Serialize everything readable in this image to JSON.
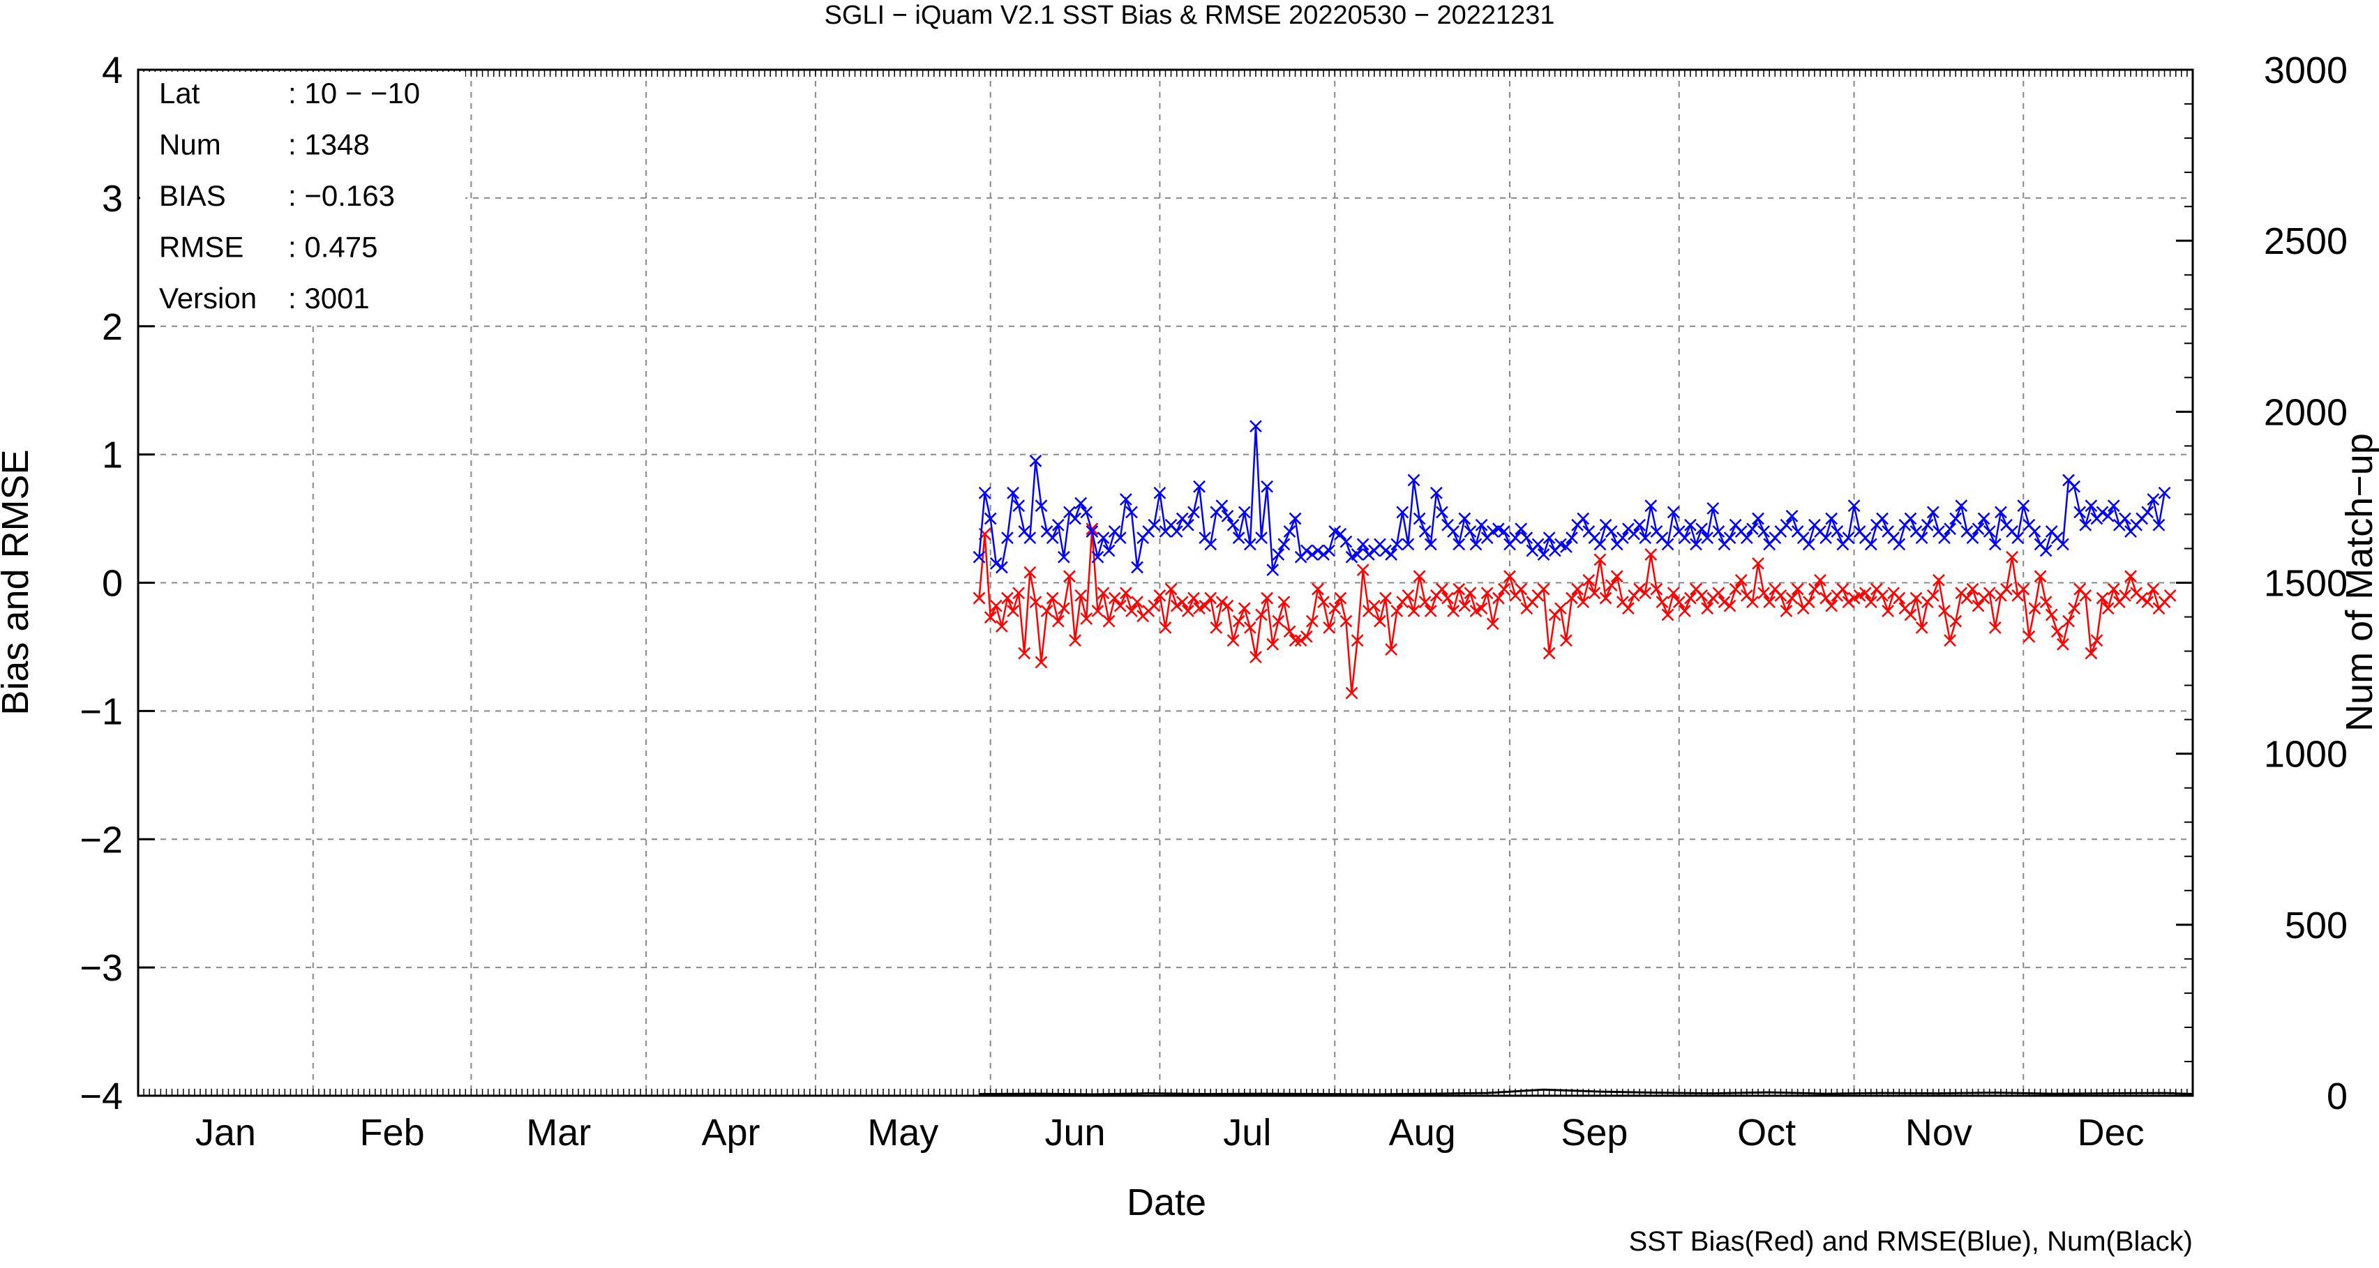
{
  "chart_data": {
    "type": "line",
    "title": "SGLI − iQuam V2.1 SST Bias & RMSE 20220530 − 20221231",
    "xlabel": "Date",
    "ylabel_left": "Bias and RMSE",
    "ylabel_right": "Num of Match−up",
    "x_range_day_of_year": [
      1,
      365
    ],
    "ylim_left": [
      -4,
      4
    ],
    "ylim_right": [
      0,
      3000
    ],
    "yticks_left": [
      "4",
      "3",
      "2",
      "1",
      "0",
      "−1",
      "−2",
      "−3",
      "−4"
    ],
    "yticks_right": [
      "3000",
      "2500",
      "2000",
      "1500",
      "1000",
      "500",
      "0"
    ],
    "month_labels": [
      "Jan",
      "Feb",
      "Mar",
      "Apr",
      "May",
      "Jun",
      "Jul",
      "Aug",
      "Sep",
      "Oct",
      "Nov",
      "Dec"
    ],
    "grid": true,
    "note": "SST Bias(Red) and RMSE(Blue), Num(Black)",
    "stats": [
      {
        "label": "Lat",
        "value": ": 10 − −10"
      },
      {
        "label": "Num",
        "value": ": 1348"
      },
      {
        "label": "BIAS",
        "value": ": −0.163"
      },
      {
        "label": "RMSE",
        "value": ": 0.475"
      },
      {
        "label": "Version",
        "value": ": 3001"
      }
    ],
    "series": [
      {
        "color": "#ff0000",
        "x_day_of_year": [
          150,
          151,
          152,
          153,
          154,
          155,
          156,
          157,
          158,
          159,
          160,
          161,
          162,
          163,
          164,
          165,
          166,
          167,
          168,
          169,
          170,
          171,
          172,
          173,
          174,
          175,
          176,
          177,
          178,
          179,
          180,
          181,
          182,
          183,
          184,
          185,
          186,
          187,
          188,
          189,
          190,
          191,
          192,
          193,
          194,
          195,
          196,
          197,
          198,
          199,
          200,
          201,
          202,
          203,
          204,
          205,
          206,
          207,
          208,
          209,
          210,
          211,
          212,
          213,
          214,
          215,
          216,
          217,
          218,
          219,
          220,
          221,
          222,
          223,
          224,
          225,
          226,
          227,
          228,
          229,
          230,
          231,
          232,
          233,
          234,
          235,
          236,
          237,
          238,
          239,
          240,
          241,
          242,
          243,
          244,
          245,
          246,
          247,
          248,
          249,
          250,
          251,
          252,
          253,
          254,
          255,
          256,
          257,
          258,
          259,
          260,
          261,
          262,
          263,
          264,
          265,
          266,
          267,
          268,
          269,
          270,
          271,
          272,
          273,
          274,
          275,
          276,
          277,
          278,
          279,
          280,
          281,
          282,
          283,
          284,
          285,
          286,
          287,
          288,
          289,
          290,
          291,
          292,
          293,
          294,
          295,
          296,
          297,
          298,
          299,
          300,
          301,
          302,
          303,
          304,
          305,
          306,
          307,
          308,
          309,
          310,
          311,
          312,
          313,
          314,
          315,
          316,
          317,
          318,
          319,
          320,
          321,
          322,
          323,
          324,
          325,
          326,
          327,
          328,
          329,
          330,
          331,
          332,
          333,
          334,
          335,
          336,
          337,
          338,
          339,
          340,
          341,
          342,
          343,
          344,
          345,
          346,
          347,
          348,
          349,
          350,
          351,
          352,
          353,
          354,
          355,
          356,
          357,
          358,
          359,
          360,
          361,
          362,
          363,
          364,
          365
        ],
        "y": [
          -0.12,
          0.38,
          -0.27,
          -0.18,
          -0.34,
          -0.12,
          -0.22,
          -0.08,
          -0.55,
          0.08,
          -0.15,
          -0.62,
          -0.22,
          -0.12,
          -0.3,
          -0.2,
          0.05,
          -0.45,
          -0.1,
          -0.28,
          0.42,
          -0.22,
          -0.08,
          -0.3,
          -0.12,
          -0.18,
          -0.08,
          -0.22,
          -0.15,
          -0.26,
          -0.22,
          -0.18,
          -0.1,
          -0.35,
          -0.05,
          -0.18,
          -0.15,
          -0.22,
          -0.12,
          -0.2,
          -0.18,
          -0.12,
          -0.35,
          -0.15,
          -0.18,
          -0.45,
          -0.3,
          -0.2,
          -0.35,
          -0.58,
          -0.25,
          -0.12,
          -0.48,
          -0.3,
          -0.15,
          -0.38,
          -0.45,
          -0.45,
          -0.42,
          -0.3,
          -0.05,
          -0.15,
          -0.35,
          -0.2,
          -0.12,
          -0.3,
          -0.86,
          -0.45,
          0.1,
          -0.22,
          -0.18,
          -0.3,
          -0.12,
          -0.52,
          -0.22,
          -0.15,
          -0.1,
          -0.22,
          0.05,
          -0.15,
          -0.22,
          -0.1,
          -0.05,
          -0.12,
          -0.22,
          -0.05,
          -0.18,
          -0.08,
          -0.22,
          -0.2,
          -0.08,
          -0.32,
          -0.12,
          -0.05,
          0.05,
          -0.1,
          -0.05,
          -0.2,
          -0.15,
          -0.1,
          -0.05,
          -0.55,
          -0.25,
          -0.2,
          -0.45,
          -0.12,
          -0.05,
          -0.15,
          0.02,
          -0.08,
          0.18,
          -0.12,
          -0.02,
          0.05,
          -0.15,
          -0.2,
          -0.1,
          -0.05,
          -0.08,
          0.22,
          -0.05,
          -0.15,
          -0.25,
          -0.08,
          -0.15,
          -0.22,
          -0.12,
          -0.05,
          -0.1,
          -0.2,
          -0.12,
          -0.08,
          -0.15,
          -0.18,
          -0.05,
          0.02,
          -0.1,
          -0.15,
          0.15,
          -0.08,
          -0.15,
          -0.05,
          -0.1,
          -0.22,
          -0.12,
          -0.05,
          -0.2,
          -0.15,
          -0.05,
          0.02,
          -0.12,
          -0.18,
          -0.1,
          -0.05,
          -0.15,
          -0.12,
          -0.1,
          -0.08,
          -0.15,
          -0.05,
          -0.1,
          -0.22,
          -0.08,
          -0.12,
          -0.2,
          -0.25,
          -0.12,
          -0.35,
          -0.15,
          -0.1,
          0.02,
          -0.22,
          -0.45,
          -0.3,
          -0.08,
          -0.12,
          -0.05,
          -0.18,
          -0.12,
          -0.08,
          -0.35,
          -0.1,
          -0.05,
          0.2,
          -0.1,
          -0.05,
          -0.42,
          -0.2,
          0.05,
          -0.15,
          -0.25,
          -0.38,
          -0.48,
          -0.3,
          -0.2,
          -0.05,
          -0.1,
          -0.55,
          -0.45,
          -0.12,
          -0.2,
          -0.05,
          -0.15,
          -0.1,
          0.05,
          -0.08,
          -0.12,
          -0.15,
          -0.05,
          -0.2,
          -0.15,
          -0.1
        ],
        "marker": "x"
      },
      {
        "color": "#0000ff",
        "x_day_of_year": [
          150,
          151,
          152,
          153,
          154,
          155,
          156,
          157,
          158,
          159,
          160,
          161,
          162,
          163,
          164,
          165,
          166,
          167,
          168,
          169,
          170,
          171,
          172,
          173,
          174,
          175,
          176,
          177,
          178,
          179,
          180,
          181,
          182,
          183,
          184,
          185,
          186,
          187,
          188,
          189,
          190,
          191,
          192,
          193,
          194,
          195,
          196,
          197,
          198,
          199,
          200,
          201,
          202,
          203,
          204,
          205,
          206,
          207,
          208,
          209,
          210,
          211,
          212,
          213,
          214,
          215,
          216,
          217,
          218,
          219,
          220,
          221,
          222,
          223,
          224,
          225,
          226,
          227,
          228,
          229,
          230,
          231,
          232,
          233,
          234,
          235,
          236,
          237,
          238,
          239,
          240,
          241,
          242,
          243,
          244,
          245,
          246,
          247,
          248,
          249,
          250,
          251,
          252,
          253,
          254,
          255,
          256,
          257,
          258,
          259,
          260,
          261,
          262,
          263,
          264,
          265,
          266,
          267,
          268,
          269,
          270,
          271,
          272,
          273,
          274,
          275,
          276,
          277,
          278,
          279,
          280,
          281,
          282,
          283,
          284,
          285,
          286,
          287,
          288,
          289,
          290,
          291,
          292,
          293,
          294,
          295,
          296,
          297,
          298,
          299,
          300,
          301,
          302,
          303,
          304,
          305,
          306,
          307,
          308,
          309,
          310,
          311,
          312,
          313,
          314,
          315,
          316,
          317,
          318,
          319,
          320,
          321,
          322,
          323,
          324,
          325,
          326,
          327,
          328,
          329,
          330,
          331,
          332,
          333,
          334,
          335,
          336,
          337,
          338,
          339,
          340,
          341,
          342,
          343,
          344,
          345,
          346,
          347,
          348,
          349,
          350,
          351,
          352,
          353,
          354,
          355,
          356,
          357,
          358,
          359,
          360,
          361,
          362,
          363,
          364,
          365
        ],
        "y": [
          0.2,
          0.7,
          0.5,
          0.15,
          0.12,
          0.35,
          0.7,
          0.6,
          0.4,
          0.35,
          0.95,
          0.6,
          0.4,
          0.35,
          0.45,
          0.2,
          0.55,
          0.5,
          0.62,
          0.55,
          0.4,
          0.2,
          0.35,
          0.25,
          0.4,
          0.35,
          0.65,
          0.55,
          0.12,
          0.35,
          0.4,
          0.45,
          0.7,
          0.4,
          0.45,
          0.4,
          0.5,
          0.45,
          0.55,
          0.75,
          0.35,
          0.3,
          0.55,
          0.6,
          0.52,
          0.45,
          0.35,
          0.55,
          0.3,
          1.22,
          0.35,
          0.75,
          0.1,
          0.22,
          0.3,
          0.4,
          0.5,
          0.2,
          0.25,
          0.22,
          0.25,
          0.22,
          0.25,
          0.4,
          0.38,
          0.32,
          0.2,
          0.22,
          0.3,
          0.22,
          0.25,
          0.3,
          0.25,
          0.22,
          0.3,
          0.55,
          0.3,
          0.8,
          0.5,
          0.4,
          0.3,
          0.7,
          0.55,
          0.45,
          0.4,
          0.3,
          0.5,
          0.4,
          0.3,
          0.45,
          0.35,
          0.4,
          0.42,
          0.4,
          0.3,
          0.35,
          0.42,
          0.35,
          0.25,
          0.3,
          0.22,
          0.35,
          0.25,
          0.3,
          0.28,
          0.35,
          0.45,
          0.5,
          0.4,
          0.35,
          0.3,
          0.45,
          0.4,
          0.3,
          0.35,
          0.42,
          0.38,
          0.45,
          0.35,
          0.6,
          0.4,
          0.35,
          0.3,
          0.55,
          0.4,
          0.35,
          0.45,
          0.3,
          0.42,
          0.35,
          0.58,
          0.4,
          0.3,
          0.35,
          0.45,
          0.4,
          0.35,
          0.42,
          0.5,
          0.4,
          0.3,
          0.35,
          0.4,
          0.45,
          0.52,
          0.4,
          0.35,
          0.3,
          0.45,
          0.4,
          0.35,
          0.5,
          0.4,
          0.3,
          0.35,
          0.6,
          0.4,
          0.35,
          0.3,
          0.45,
          0.5,
          0.4,
          0.35,
          0.3,
          0.45,
          0.5,
          0.4,
          0.35,
          0.45,
          0.55,
          0.4,
          0.35,
          0.42,
          0.5,
          0.6,
          0.4,
          0.35,
          0.42,
          0.5,
          0.4,
          0.3,
          0.55,
          0.45,
          0.4,
          0.35,
          0.6,
          0.45,
          0.4,
          0.3,
          0.25,
          0.4,
          0.35,
          0.3,
          0.8,
          0.75,
          0.55,
          0.45,
          0.6,
          0.5,
          0.55,
          0.52,
          0.6,
          0.45,
          0.5,
          0.4,
          0.45,
          0.5,
          0.55,
          0.65,
          0.45,
          0.7
        ],
        "marker": "x"
      },
      {
        "color": "#000000",
        "x_day_of_year": [
          150,
          160,
          170,
          180,
          190,
          200,
          210,
          220,
          230,
          240,
          250,
          260,
          270,
          280,
          290,
          300,
          310,
          320,
          330,
          340,
          350,
          360,
          365
        ],
        "y": [
          5,
          6,
          4,
          7,
          5,
          6,
          5,
          4,
          6,
          8,
          18,
          12,
          9,
          7,
          10,
          6,
          8,
          7,
          9,
          6,
          7,
          8,
          5
        ],
        "marker": "none"
      }
    ]
  }
}
